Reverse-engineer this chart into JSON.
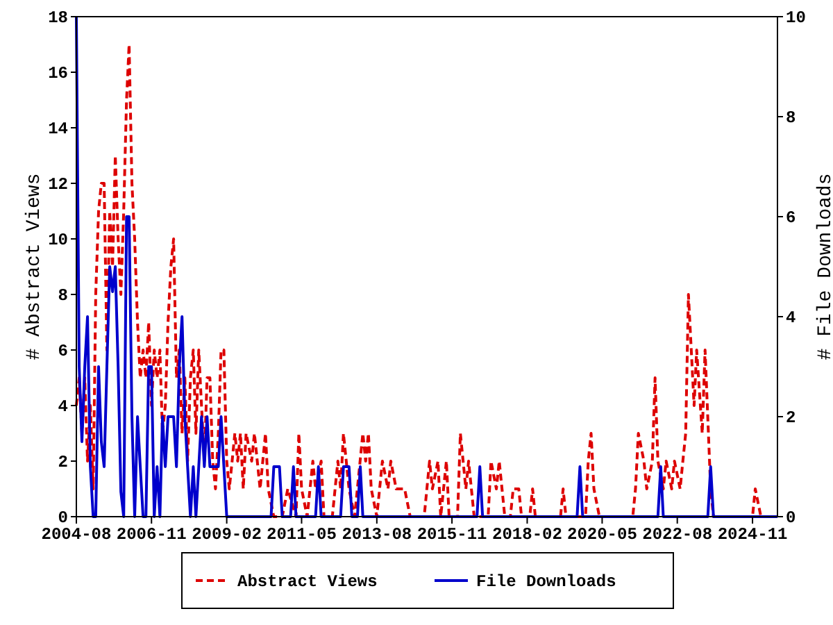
{
  "chart_data": {
    "type": "line",
    "xlabel": null,
    "ylabel": "# Abstract Views",
    "y2label": "# File Downloads",
    "xlim": [
      "2004-08",
      "2025-08"
    ],
    "xticks": [
      {
        "value": "2004-08",
        "label": "2004-08"
      },
      {
        "value": "2006-11",
        "label": "2006-11"
      },
      {
        "value": "2009-02",
        "label": "2009-02"
      },
      {
        "value": "2011-05",
        "label": "2011-05"
      },
      {
        "value": "2013-08",
        "label": "2013-08"
      },
      {
        "value": "2015-11",
        "label": "2015-11"
      },
      {
        "value": "2018-02",
        "label": "2018-02"
      },
      {
        "value": "2020-05",
        "label": "2020-05"
      },
      {
        "value": "2022-08",
        "label": "2022-08"
      },
      {
        "value": "2024-11",
        "label": "2024-11"
      }
    ],
    "ylim": [
      0,
      18
    ],
    "yticks": [
      0,
      2,
      4,
      6,
      8,
      10,
      12,
      14,
      16,
      18
    ],
    "y2lim": [
      0,
      10
    ],
    "y2ticks": [
      0,
      2,
      4,
      6,
      8,
      10
    ],
    "grid": false,
    "legend": "bottom",
    "marker": "none",
    "series": [
      {
        "name": "Abstract Views",
        "color": "#dd0000",
        "line_style": "dashed",
        "x": [
          "2004-08",
          "2004-09",
          "2004-10",
          "2004-11",
          "2004-12",
          "2005-01",
          "2005-02",
          "2005-03",
          "2005-04",
          "2005-05",
          "2005-06",
          "2005-07",
          "2005-08",
          "2005-09",
          "2005-10",
          "2005-11",
          "2005-12",
          "2006-01",
          "2006-02",
          "2006-03",
          "2006-04",
          "2006-05",
          "2006-06",
          "2006-07",
          "2006-08",
          "2006-09",
          "2006-10",
          "2006-11",
          "2006-12",
          "2007-01",
          "2007-02",
          "2007-03",
          "2007-04",
          "2007-05",
          "2007-06",
          "2007-07",
          "2007-08",
          "2007-09",
          "2007-10",
          "2007-11",
          "2007-12",
          "2008-01",
          "2008-02",
          "2008-03",
          "2008-04",
          "2008-05",
          "2008-06",
          "2008-07",
          "2008-08",
          "2008-09",
          "2008-10",
          "2008-11",
          "2008-12",
          "2009-01",
          "2009-02",
          "2009-03",
          "2009-04",
          "2009-05",
          "2009-06",
          "2009-07",
          "2009-08",
          "2009-09",
          "2009-11",
          "2009-12",
          "2010-01",
          "2010-02",
          "2010-04",
          "2010-05",
          "2010-07",
          "2010-10",
          "2010-12",
          "2011-03",
          "2011-04",
          "2011-05",
          "2011-07",
          "2011-09",
          "2011-10",
          "2011-12",
          "2012-01",
          "2012-04",
          "2012-06",
          "2012-07",
          "2012-08",
          "2012-10",
          "2012-12",
          "2013-03",
          "2013-04",
          "2013-05",
          "2013-06",
          "2013-08",
          "2013-10",
          "2013-12",
          "2014-01",
          "2014-03",
          "2014-04",
          "2014-06",
          "2014-08",
          "2015-01",
          "2015-03",
          "2015-04",
          "2015-06",
          "2015-07",
          "2015-09",
          "2015-10",
          "2016-01",
          "2016-02",
          "2016-04",
          "2016-05",
          "2016-07",
          "2016-12",
          "2017-01",
          "2017-03",
          "2017-04",
          "2017-06",
          "2017-08",
          "2017-09",
          "2017-11",
          "2017-12",
          "2018-03",
          "2018-04",
          "2018-05",
          "2019-02",
          "2019-03",
          "2019-04",
          "2019-11",
          "2019-12",
          "2020-01",
          "2020-02",
          "2020-04",
          "2021-04",
          "2021-05",
          "2021-06",
          "2021-08",
          "2021-09",
          "2021-11",
          "2021-12",
          "2022-01",
          "2022-03",
          "2022-04",
          "2022-06",
          "2022-07",
          "2022-09",
          "2022-10",
          "2022-11",
          "2022-12",
          "2023-02",
          "2023-03",
          "2023-05",
          "2023-06",
          "2023-08",
          "2023-09",
          "2024-11",
          "2024-12",
          "2025-02",
          "2025-08"
        ],
        "values": [
          4,
          5,
          3,
          5,
          2,
          4,
          1,
          8,
          11,
          12,
          12,
          6,
          11,
          9,
          13,
          10,
          8,
          11,
          15,
          17,
          12,
          10,
          7,
          5,
          6,
          5,
          7,
          4,
          6,
          5,
          6,
          3,
          4,
          7,
          9,
          10,
          5,
          6,
          3,
          5,
          2,
          5,
          6,
          3,
          6,
          4,
          2,
          5,
          5,
          2,
          1,
          3,
          6,
          6,
          2,
          1,
          2,
          3,
          2,
          3,
          1,
          3,
          2,
          3,
          2,
          1,
          3,
          1,
          0,
          0,
          1,
          0,
          3,
          1,
          0,
          2,
          1,
          2,
          0,
          0,
          2,
          1,
          3,
          1,
          0,
          3,
          2,
          3,
          1,
          0,
          2,
          1,
          2,
          1,
          1,
          1,
          0,
          0,
          2,
          1,
          2,
          0,
          2,
          0,
          0,
          3,
          1,
          2,
          0,
          0,
          2,
          1,
          2,
          0,
          0,
          1,
          1,
          0,
          0,
          1,
          0,
          0,
          1,
          0,
          0,
          2,
          3,
          1,
          0,
          0,
          1,
          3,
          2,
          1,
          2,
          5,
          2,
          1,
          2,
          1,
          2,
          1,
          2,
          3,
          8,
          4,
          6,
          3,
          6,
          1,
          0,
          0,
          1,
          0,
          0
        ]
      },
      {
        "name": "File Downloads",
        "color": "#0000cc",
        "line_style": "solid",
        "axis": "y2",
        "x": [
          "2004-08",
          "2004-09",
          "2004-10",
          "2004-11",
          "2004-12",
          "2005-01",
          "2005-02",
          "2005-03",
          "2005-04",
          "2005-05",
          "2005-06",
          "2005-07",
          "2005-08",
          "2005-09",
          "2005-10",
          "2005-11",
          "2005-12",
          "2006-01",
          "2006-02",
          "2006-03",
          "2006-04",
          "2006-05",
          "2006-06",
          "2006-07",
          "2006-08",
          "2006-09",
          "2006-10",
          "2006-11",
          "2006-12",
          "2007-01",
          "2007-02",
          "2007-03",
          "2007-04",
          "2007-05",
          "2007-06",
          "2007-07",
          "2007-08",
          "2007-09",
          "2007-10",
          "2007-11",
          "2007-12",
          "2008-01",
          "2008-02",
          "2008-03",
          "2008-04",
          "2008-05",
          "2008-06",
          "2008-07",
          "2008-08",
          "2008-09",
          "2008-10",
          "2008-11",
          "2008-12",
          "2009-01",
          "2009-02",
          "2010-06",
          "2010-07",
          "2010-09",
          "2010-10",
          "2011-01",
          "2011-02",
          "2011-03",
          "2011-10",
          "2011-11",
          "2011-12",
          "2012-07",
          "2012-08",
          "2012-10",
          "2012-11",
          "2013-01",
          "2013-02",
          "2013-03",
          "2016-08",
          "2016-09",
          "2016-10",
          "2019-08",
          "2019-09",
          "2019-10",
          "2022-01",
          "2022-02",
          "2022-03",
          "2023-07",
          "2023-08",
          "2023-09",
          "2025-08"
        ],
        "values": [
          10,
          3,
          1.5,
          3,
          4,
          1,
          0,
          0,
          3,
          1.5,
          1,
          3,
          5,
          4.5,
          5,
          3,
          0.5,
          0,
          6,
          6,
          2,
          0,
          2,
          1,
          0,
          0,
          3,
          3,
          0,
          1,
          0,
          2,
          1,
          2,
          2,
          2,
          1,
          3,
          4,
          2,
          1,
          0,
          1,
          0,
          1,
          2,
          1,
          2,
          1,
          1,
          1,
          1,
          2,
          1,
          0,
          0,
          1,
          1,
          0,
          0,
          1,
          0,
          0,
          1,
          0,
          0,
          1,
          1,
          0,
          0,
          1,
          0,
          0,
          1,
          0,
          0,
          1,
          0,
          0,
          1,
          0,
          0,
          1,
          0,
          0
        ]
      }
    ]
  }
}
